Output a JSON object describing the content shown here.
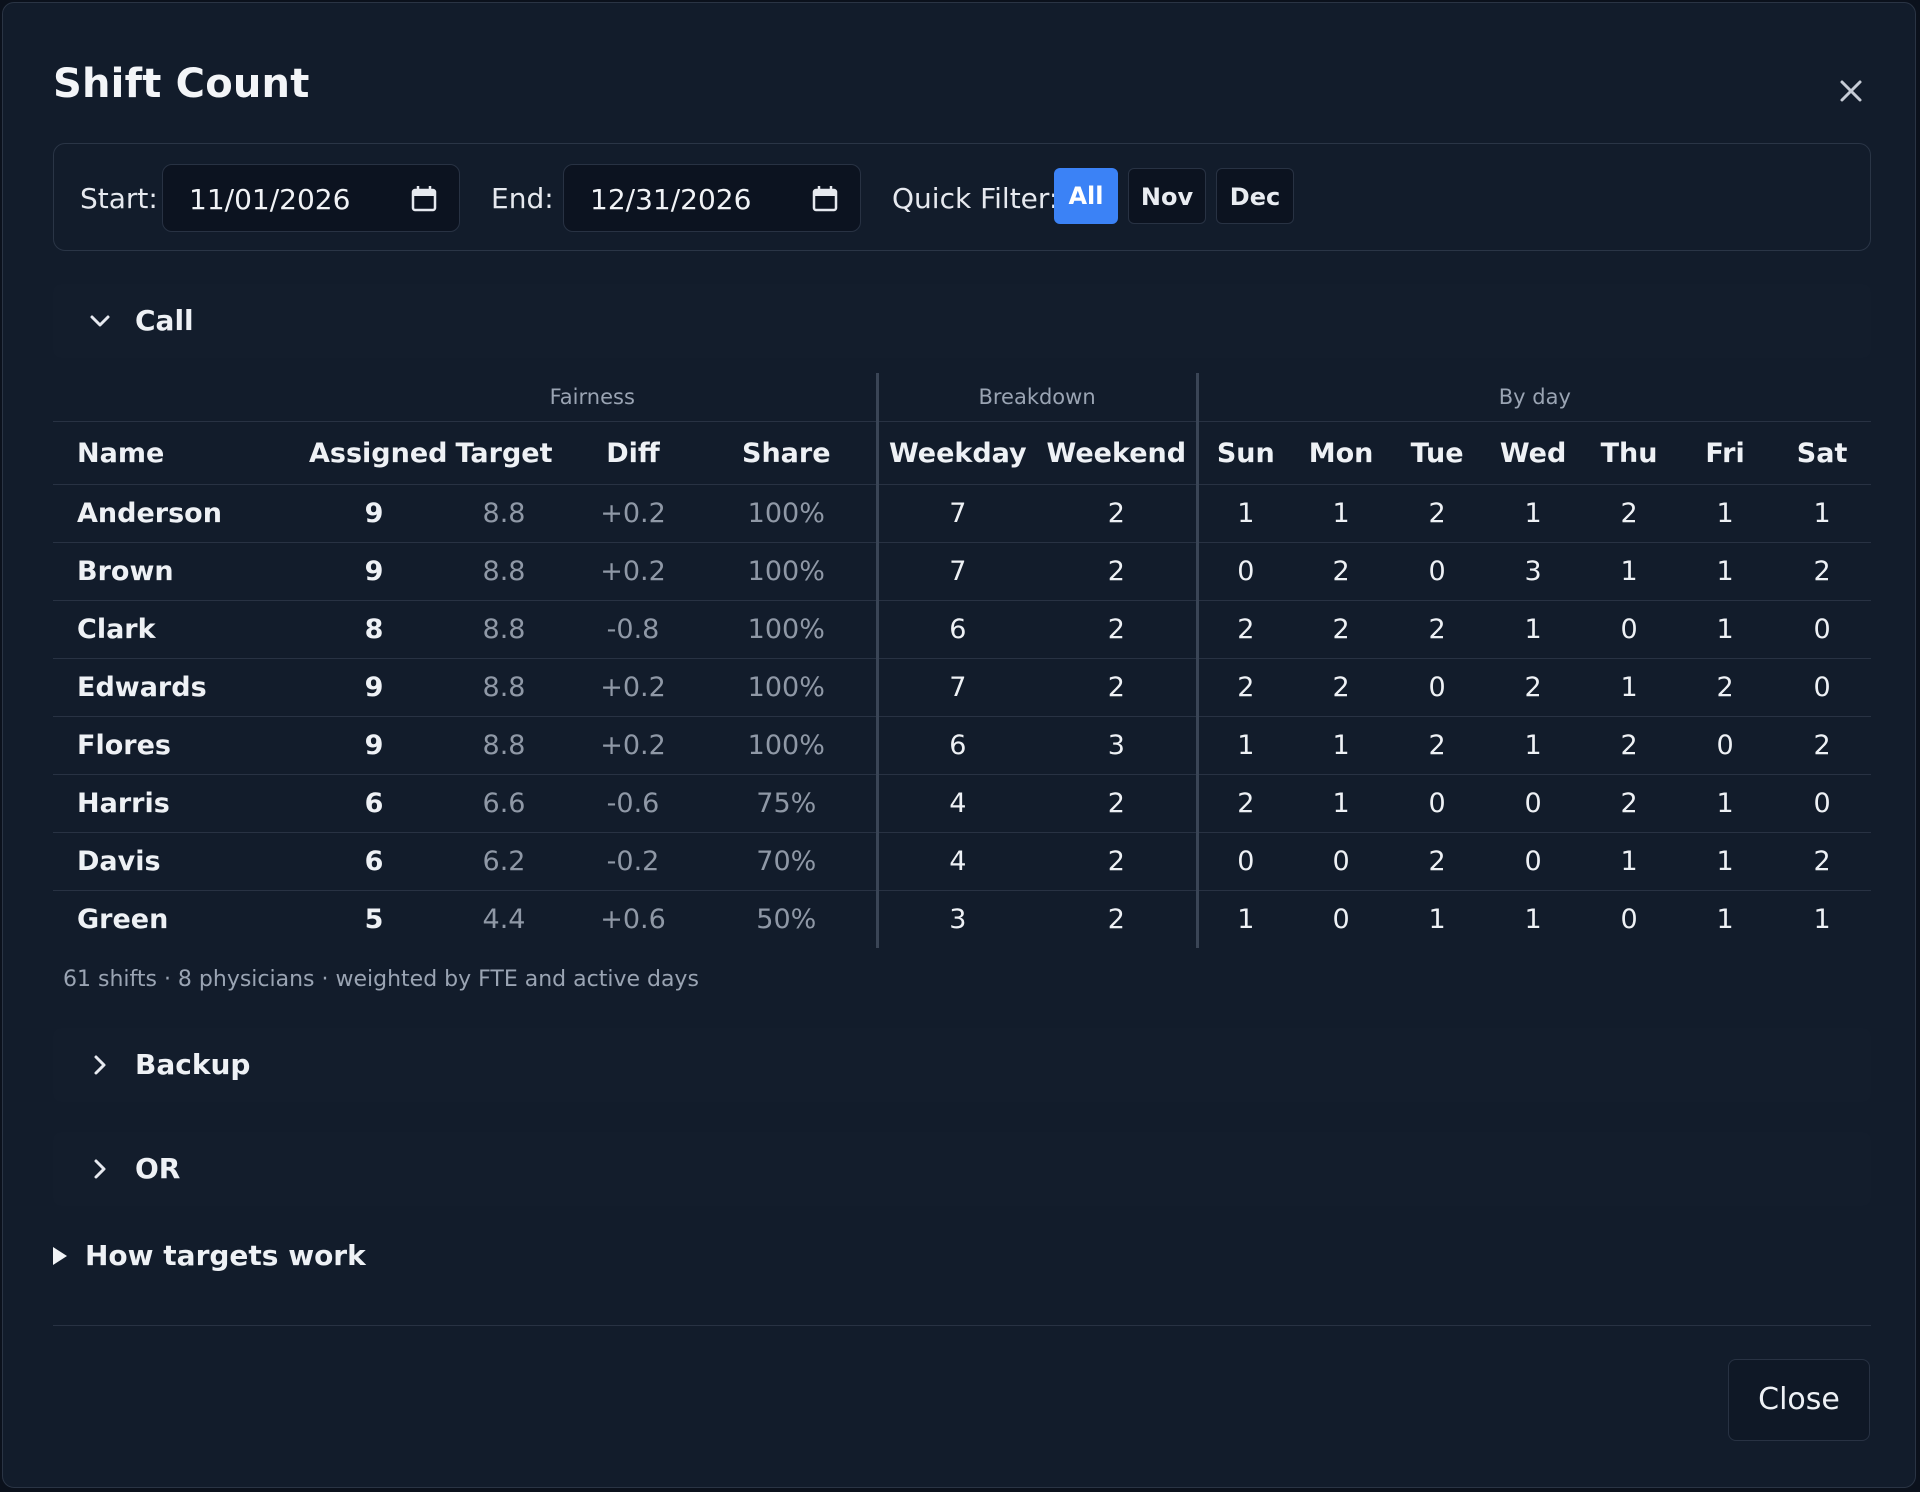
{
  "dialog": {
    "title": "Shift Count",
    "close_label": "Close"
  },
  "filters": {
    "start_label": "Start:",
    "start_value": "11/01/2026",
    "end_label": "End:",
    "end_value": "12/31/2026",
    "quick_filter_label": "Quick Filter:",
    "quick_options": [
      "All",
      "Nov",
      "Dec"
    ],
    "active_option": "All"
  },
  "sections": {
    "call": {
      "name": "Call",
      "expanded": true,
      "groups": {
        "fairness": "Fairness",
        "breakdown": "Breakdown",
        "by_day": "By day"
      },
      "columns": [
        "Name",
        "Assigned",
        "Target",
        "Diff",
        "Share",
        "Weekday",
        "Weekend",
        "Sun",
        "Mon",
        "Tue",
        "Wed",
        "Thu",
        "Fri",
        "Sat"
      ],
      "rows": [
        [
          "Anderson",
          "9",
          "8.8",
          "+0.2",
          "100%",
          "7",
          "2",
          "1",
          "1",
          "2",
          "1",
          "2",
          "1",
          "1"
        ],
        [
          "Brown",
          "9",
          "8.8",
          "+0.2",
          "100%",
          "7",
          "2",
          "0",
          "2",
          "0",
          "3",
          "1",
          "1",
          "2"
        ],
        [
          "Clark",
          "8",
          "8.8",
          "-0.8",
          "100%",
          "6",
          "2",
          "2",
          "2",
          "2",
          "1",
          "0",
          "1",
          "0"
        ],
        [
          "Edwards",
          "9",
          "8.8",
          "+0.2",
          "100%",
          "7",
          "2",
          "2",
          "2",
          "0",
          "2",
          "1",
          "2",
          "0"
        ],
        [
          "Flores",
          "9",
          "8.8",
          "+0.2",
          "100%",
          "6",
          "3",
          "1",
          "1",
          "2",
          "1",
          "2",
          "0",
          "2"
        ],
        [
          "Harris",
          "6",
          "6.6",
          "-0.6",
          "75%",
          "4",
          "2",
          "2",
          "1",
          "0",
          "0",
          "2",
          "1",
          "0"
        ],
        [
          "Davis",
          "6",
          "6.2",
          "-0.2",
          "70%",
          "4",
          "2",
          "0",
          "0",
          "2",
          "0",
          "1",
          "1",
          "2"
        ],
        [
          "Green",
          "5",
          "4.4",
          "+0.6",
          "50%",
          "3",
          "2",
          "1",
          "0",
          "1",
          "1",
          "0",
          "1",
          "1"
        ]
      ],
      "summary": "61 shifts · 8 physicians · weighted by FTE and active days"
    },
    "backup": {
      "name": "Backup",
      "expanded": false
    },
    "or": {
      "name": "OR",
      "expanded": false
    }
  },
  "how_targets": {
    "label": "How targets work"
  },
  "colors": {
    "background": "#121c2b",
    "accent": "#3b82f6",
    "muted_text": "#8f98a6",
    "border": "#283243"
  }
}
